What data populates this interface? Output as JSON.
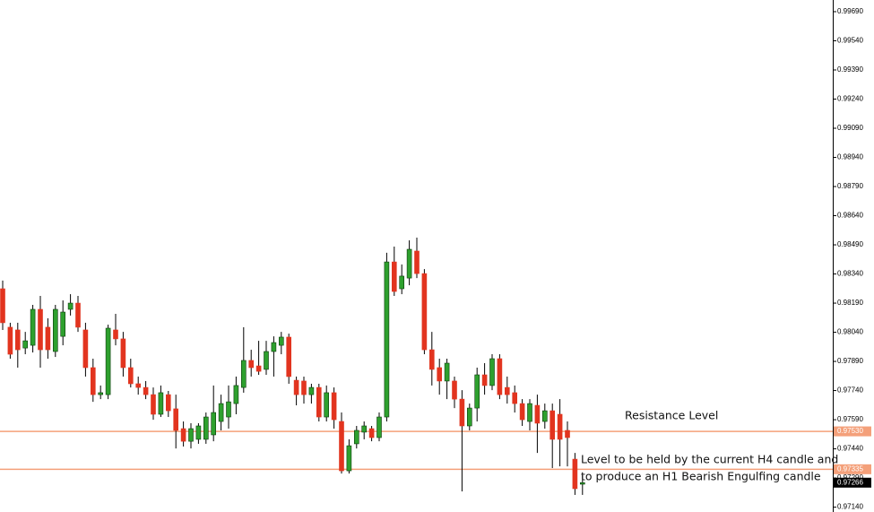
{
  "chart_data": {
    "type": "candlestick",
    "up_color": "#2ea02e",
    "down_color": "#e2341f",
    "open": [
      0.98264,
      0.98066,
      0.98052,
      0.97959,
      0.97973,
      0.98158,
      0.98066,
      0.97941,
      0.98019,
      0.98158,
      0.9819,
      0.98052,
      0.97858,
      0.97719,
      0.97719,
      0.98052,
      0.98006,
      0.97858,
      0.97775,
      0.97756,
      0.97719,
      0.97618,
      0.97719,
      0.97646,
      0.97544,
      0.97479,
      0.97489,
      0.97489,
      0.97512,
      0.97581,
      0.97604,
      0.97673,
      0.97756,
      0.97895,
      0.97867,
      0.97849,
      0.97941,
      0.97973,
      0.98015,
      0.97793,
      0.97789,
      0.97719,
      0.97756,
      0.97604,
      0.97729,
      0.97581,
      0.97327,
      0.97466,
      0.97526,
      0.97544,
      0.97498,
      0.97604,
      0.98402,
      0.98264,
      0.98319,
      0.98458,
      0.98342,
      0.9795,
      0.97858,
      0.97789,
      0.97789,
      0.97696,
      0.97558,
      0.9765,
      0.97821,
      0.97766,
      0.97904,
      0.97756,
      0.97729,
      0.97673,
      0.97581,
      0.97664,
      0.97581,
      0.97636,
      0.97618,
      0.97535,
      0.97387,
      0.97258
    ],
    "high": [
      0.98306,
      0.98089,
      0.98089,
      0.98042,
      0.98181,
      0.98227,
      0.98112,
      0.98181,
      0.98204,
      0.98236,
      0.98227,
      0.98089,
      0.97904,
      0.97766,
      0.98079,
      0.98135,
      0.98042,
      0.97904,
      0.97812,
      0.97789,
      0.97756,
      0.97766,
      0.97738,
      0.97719,
      0.97581,
      0.97572,
      0.97572,
      0.97627,
      0.97766,
      0.97719,
      0.97766,
      0.97812,
      0.98066,
      0.9795,
      0.97996,
      0.97996,
      0.98019,
      0.98042,
      0.98033,
      0.97812,
      0.97812,
      0.97775,
      0.97775,
      0.97766,
      0.97756,
      0.97627,
      0.97489,
      0.97558,
      0.97581,
      0.97558,
      0.97627,
      0.98449,
      0.98481,
      0.98389,
      0.98513,
      0.98527,
      0.98365,
      0.98042,
      0.97904,
      0.97904,
      0.97812,
      0.97742,
      0.97673,
      0.97858,
      0.97881,
      0.97927,
      0.97927,
      0.97812,
      0.97766,
      0.97696,
      0.97696,
      0.97719,
      0.97673,
      0.97673,
      0.97696,
      0.97581,
      0.97419,
      0.97304
    ],
    "low": [
      0.98052,
      0.97904,
      0.97858,
      0.97927,
      0.97936,
      0.97858,
      0.97904,
      0.97913,
      0.97973,
      0.98126,
      0.98042,
      0.97812,
      0.97682,
      0.97696,
      0.97696,
      0.97973,
      0.97812,
      0.97756,
      0.97719,
      0.97696,
      0.9759,
      0.97604,
      0.97604,
      0.97442,
      0.97452,
      0.97442,
      0.97466,
      0.97466,
      0.97479,
      0.97535,
      0.97544,
      0.97618,
      0.97729,
      0.97812,
      0.97821,
      0.97821,
      0.97812,
      0.97927,
      0.97775,
      0.97664,
      0.97673,
      0.97673,
      0.97581,
      0.97581,
      0.97544,
      0.97313,
      0.97313,
      0.97442,
      0.97489,
      0.97479,
      0.97479,
      0.97581,
      0.98227,
      0.98236,
      0.98282,
      0.98319,
      0.97927,
      0.97766,
      0.97719,
      0.97696,
      0.9765,
      0.97221,
      0.97535,
      0.97581,
      0.97719,
      0.97742,
      0.97696,
      0.97673,
      0.97627,
      0.97558,
      0.97535,
      0.97419,
      0.97544,
      0.97341,
      0.9735,
      0.9735,
      0.97203,
      0.97203
    ],
    "close": [
      0.98089,
      0.97927,
      0.9795,
      0.97996,
      0.98158,
      0.9795,
      0.9795,
      0.98158,
      0.98144,
      0.9819,
      0.98066,
      0.97858,
      0.97719,
      0.97729,
      0.98061,
      0.98006,
      0.97858,
      0.97775,
      0.97756,
      0.97719,
      0.97618,
      0.97729,
      0.97636,
      0.97535,
      0.97479,
      0.97544,
      0.97558,
      0.97604,
      0.97627,
      0.97673,
      0.97682,
      0.97766,
      0.97895,
      0.97858,
      0.97839,
      0.97941,
      0.97987,
      0.98015,
      0.97812,
      0.97719,
      0.97719,
      0.97756,
      0.97604,
      0.97729,
      0.9759,
      0.97327,
      0.97456,
      0.97535,
      0.97558,
      0.97498,
      0.97604,
      0.98402,
      0.9825,
      0.98329,
      0.98467,
      0.98342,
      0.9795,
      0.97849,
      0.97789,
      0.97881,
      0.97696,
      0.97558,
      0.9765,
      0.97821,
      0.97766,
      0.97904,
      0.97719,
      0.97719,
      0.97673,
      0.9759,
      0.97673,
      0.97572,
      0.97636,
      0.97489,
      0.97489,
      0.97498,
      0.97235,
      0.97266
    ],
    "ylim": [
      0.97115,
      0.9975
    ],
    "yticks": [
      {
        "value": 0.9969,
        "label": "0.99690"
      },
      {
        "value": 0.9954,
        "label": "0.99540"
      },
      {
        "value": 0.9939,
        "label": "0.99390"
      },
      {
        "value": 0.9924,
        "label": "0.99240"
      },
      {
        "value": 0.9909,
        "label": "0.99090"
      },
      {
        "value": 0.9894,
        "label": "0.98940"
      },
      {
        "value": 0.9879,
        "label": "0.98790"
      },
      {
        "value": 0.9864,
        "label": "0.98640"
      },
      {
        "value": 0.9849,
        "label": "0.98490"
      },
      {
        "value": 0.9834,
        "label": "0.98340"
      },
      {
        "value": 0.9819,
        "label": "0.98190"
      },
      {
        "value": 0.9804,
        "label": "0.98040"
      },
      {
        "value": 0.9789,
        "label": "0.97890"
      },
      {
        "value": 0.9774,
        "label": "0.97740"
      },
      {
        "value": 0.9759,
        "label": "0.97590"
      },
      {
        "value": 0.9744,
        "label": "0.97440"
      },
      {
        "value": 0.9729,
        "label": "0.97290"
      },
      {
        "value": 0.9714,
        "label": "0.97140"
      }
    ],
    "levels": [
      {
        "value": 0.9753,
        "label": "0.97530",
        "color": "#f4a07a"
      },
      {
        "value": 0.97335,
        "label": "0.97335",
        "color": "#f4a07a"
      }
    ],
    "current_price": {
      "value": 0.97266,
      "label": "0.97266",
      "color": "#000000"
    },
    "annotations": [
      {
        "text": "Resistance Level"
      },
      {
        "text": "Level to be held by the current H4 candle and"
      },
      {
        "text": "to produce an H1 Bearish Engulfing candle"
      }
    ]
  }
}
